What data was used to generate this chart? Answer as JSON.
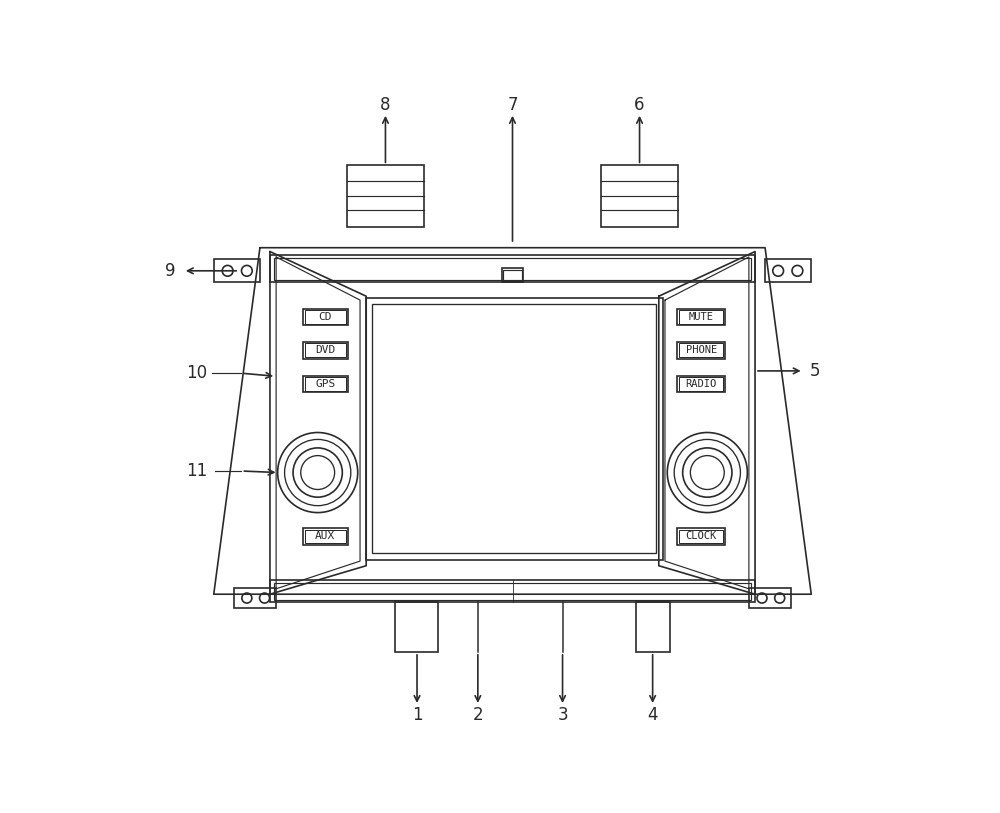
{
  "fig_width": 10.0,
  "fig_height": 8.13,
  "bg_color": "#ffffff",
  "line_color": "#2a2a2a",
  "lw": 1.2,
  "left_buttons": [
    "CD",
    "DVD",
    "GPS",
    "AUX"
  ],
  "right_buttons": [
    "MUTE",
    "PHONE",
    "RADIO",
    "CLOCK"
  ]
}
